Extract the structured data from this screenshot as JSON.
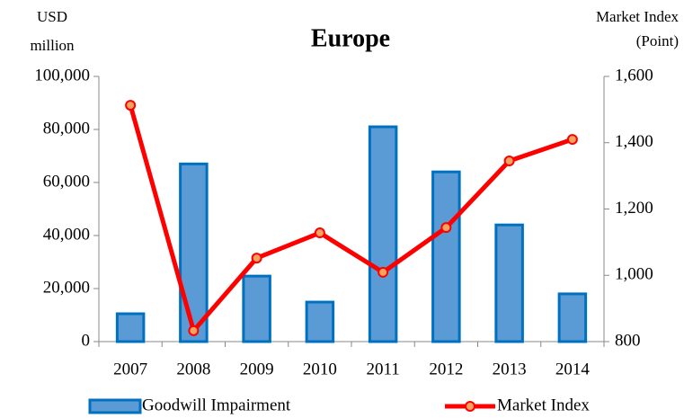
{
  "chart_data": {
    "type": "bar-line",
    "title": "Europe",
    "y_label": [
      "USD",
      "million"
    ],
    "y2_label": [
      "Market Index",
      "(Point)"
    ],
    "categories": [
      "2007",
      "2008",
      "2009",
      "2010",
      "2011",
      "2012",
      "2013",
      "2014"
    ],
    "series": [
      {
        "name": "Goodwill Impairment",
        "type": "bar",
        "color": "#5b9bd5",
        "border": "#0070c0",
        "values": [
          10500,
          67000,
          24700,
          14900,
          81000,
          64000,
          44000,
          18000
        ]
      },
      {
        "name": "Market Index",
        "type": "line",
        "axis": "y2",
        "color": "#ff0000",
        "marker_color": "#f4a460",
        "values": [
          1513,
          833,
          1052,
          1128,
          1009,
          1144,
          1345,
          1410
        ]
      }
    ],
    "ylim": [
      0,
      100000
    ],
    "yticks": [
      0,
      {
        "value": 20000,
        "label": "20,000"
      },
      {
        "value": 40000,
        "label": "40,000"
      },
      {
        "value": 60000,
        "label": "60,000"
      },
      {
        "value": 80000,
        "label": "80,000"
      },
      {
        "value": 100000,
        "label": "100,000"
      }
    ],
    "y2lim": [
      800,
      1600
    ],
    "y2ticks": [
      800,
      {
        "value": 1000,
        "label": "1,000"
      },
      {
        "value": 1200,
        "label": "1,200"
      },
      {
        "value": 1400,
        "label": "1,400"
      },
      {
        "value": 1600,
        "label": "1,600"
      }
    ],
    "grid": false
  }
}
